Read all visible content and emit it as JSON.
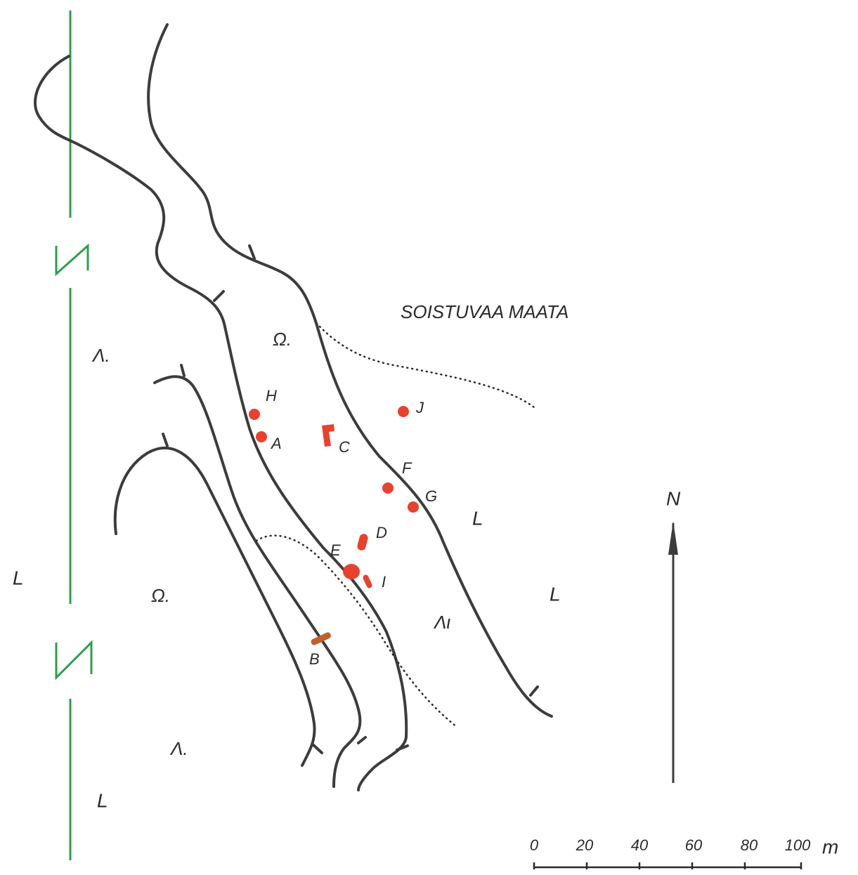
{
  "title": "SOISTUVAA MAATA",
  "sites": [
    {
      "label": "H"
    },
    {
      "label": "A"
    },
    {
      "label": "C"
    },
    {
      "label": "J"
    },
    {
      "label": "F"
    },
    {
      "label": "G"
    },
    {
      "label": "D"
    },
    {
      "label": "E"
    },
    {
      "label": "I"
    },
    {
      "label": "B"
    }
  ],
  "symbols": [
    "Ω.",
    "Λ.",
    "Ω.",
    "Λ.",
    "Λι"
  ],
  "land_labels": [
    "L",
    "L",
    "L",
    "L"
  ],
  "north": "N",
  "scale": {
    "ticks": [
      "0",
      "20",
      "40",
      "60",
      "80",
      "100"
    ],
    "unit": "m"
  }
}
